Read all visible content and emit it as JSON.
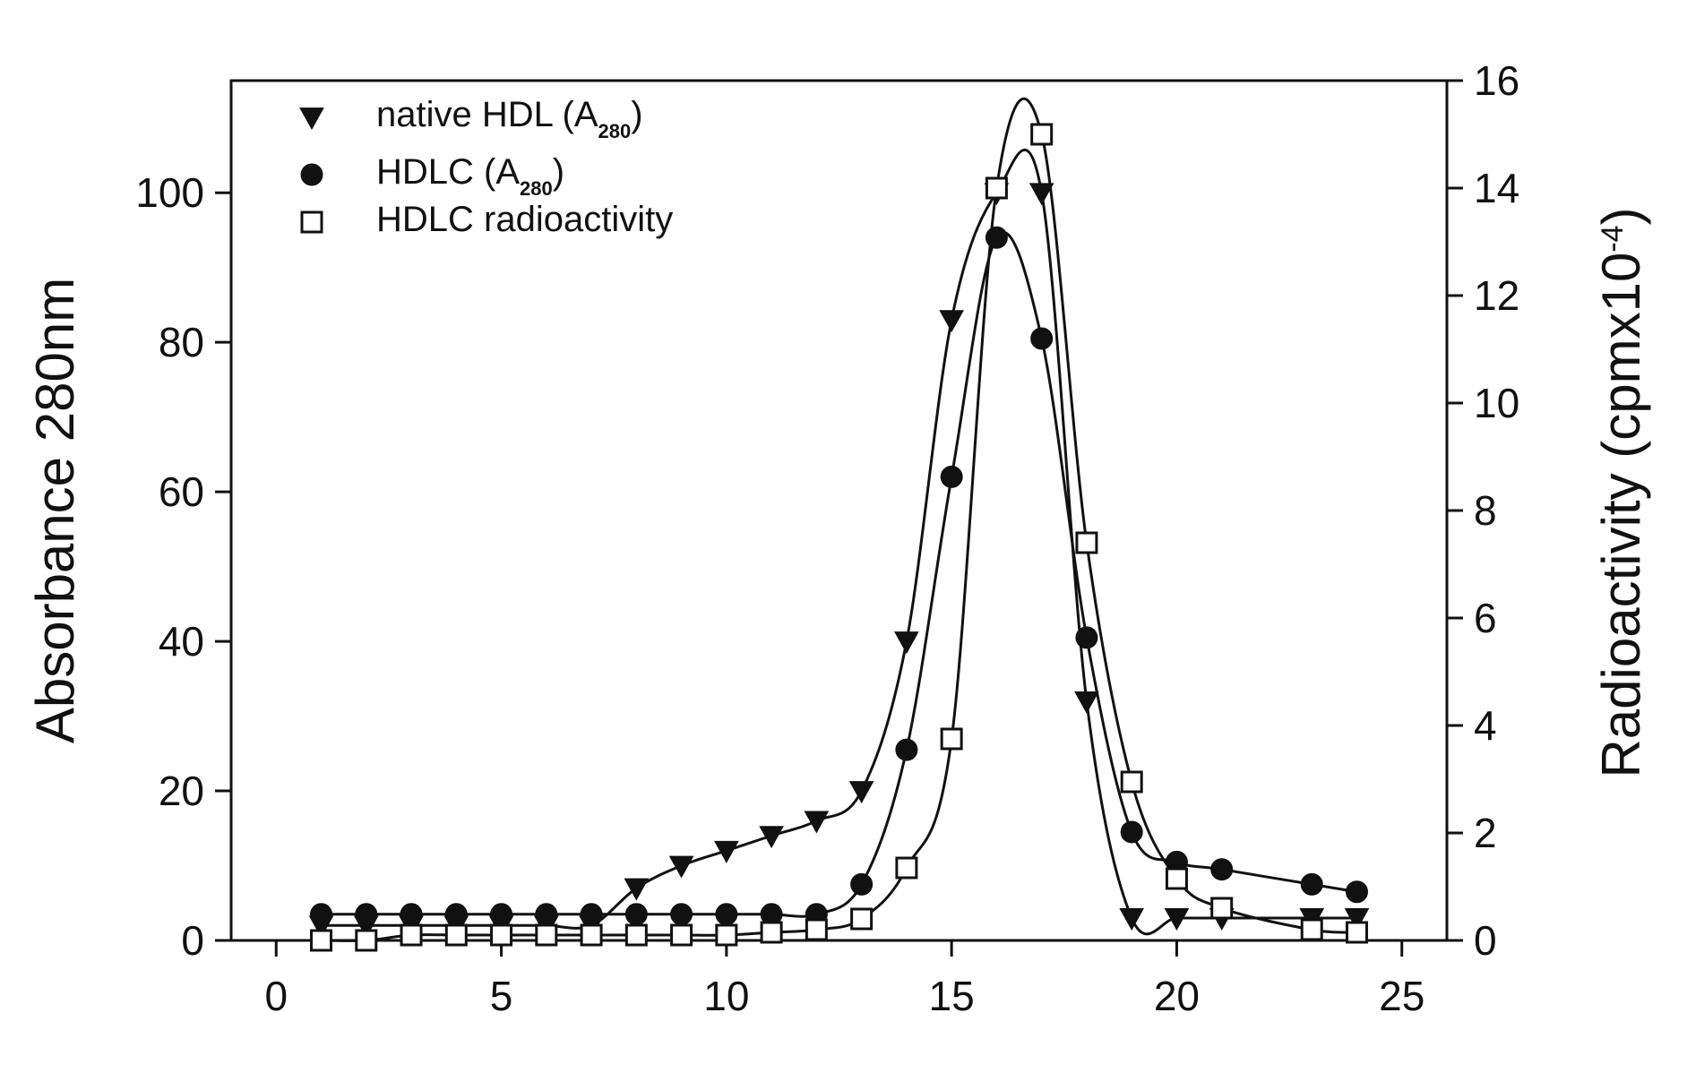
{
  "chart_data": {
    "type": "line",
    "xlim": [
      -1,
      26
    ],
    "ylim_left": [
      0,
      115
    ],
    "ylim_right": [
      0,
      16
    ],
    "xticks": [
      0,
      5,
      10,
      15,
      20,
      25
    ],
    "yticks_left": [
      0,
      20,
      40,
      60,
      80,
      100
    ],
    "yticks_right": [
      0,
      2,
      4,
      6,
      8,
      10,
      12,
      14,
      16
    ],
    "ylabel_left": "Absorbance 280nm",
    "ylabel_right": {
      "text": "Radioactivity (cpmx10",
      "sup": "-4",
      "close": ")"
    },
    "legend_placement": "top-left",
    "series": [
      {
        "label": "native HDL (A",
        "subscript": "280",
        "label_close": ")",
        "marker": "triangle-down",
        "axis": "left",
        "x": [
          1,
          2,
          3,
          4,
          5,
          6,
          7,
          8,
          9,
          10,
          11,
          12,
          13,
          14,
          15,
          16,
          17,
          18,
          19,
          20,
          21,
          23,
          24
        ],
        "y": [
          2,
          2,
          2,
          2,
          2,
          2,
          2,
          7,
          10,
          12,
          14,
          16,
          20,
          40,
          83,
          100,
          100,
          32,
          3,
          3,
          3,
          3,
          3
        ]
      },
      {
        "label": "HDLC (A",
        "subscript": "280",
        "label_close": ")",
        "marker": "circle-filled",
        "axis": "left",
        "x": [
          1,
          2,
          3,
          4,
          5,
          6,
          7,
          8,
          9,
          10,
          11,
          12,
          13,
          14,
          15,
          16,
          17,
          18,
          19,
          20,
          21,
          23,
          24
        ],
        "y": [
          3.5,
          3.5,
          3.5,
          3.5,
          3.5,
          3.5,
          3.5,
          3.5,
          3.5,
          3.5,
          3.5,
          3.5,
          7.5,
          25.5,
          62,
          94,
          80.5,
          40.5,
          14.5,
          10.5,
          9.5,
          7.5,
          6.5
        ]
      },
      {
        "label": "HDLC radioactivity",
        "marker": "square-open",
        "axis": "right",
        "x": [
          1,
          2,
          3,
          4,
          5,
          6,
          7,
          8,
          9,
          10,
          11,
          12,
          13,
          14,
          15,
          16,
          17,
          18,
          19,
          20,
          21,
          23,
          24
        ],
        "y": [
          0,
          0,
          0.1,
          0.1,
          0.1,
          0.1,
          0.1,
          0.1,
          0.1,
          0.1,
          0.15,
          0.2,
          0.4,
          1.35,
          3.75,
          14,
          15,
          7.4,
          2.95,
          1.15,
          0.6,
          0.2,
          0.15
        ]
      }
    ]
  }
}
